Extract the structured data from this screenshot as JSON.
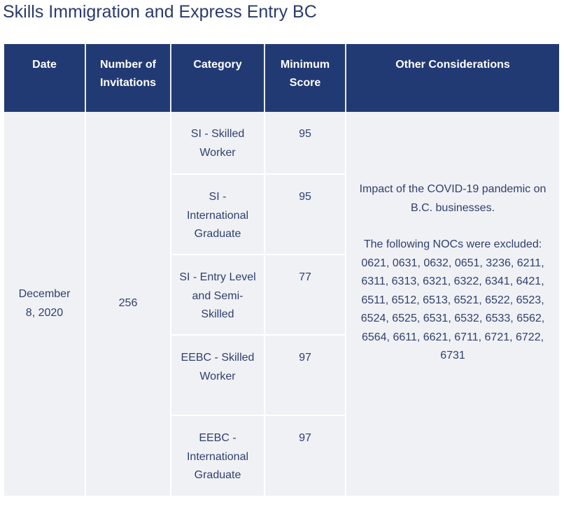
{
  "title": "Skills Immigration and Express Entry BC",
  "table": {
    "headers": {
      "date": "Date",
      "invitations": "Number of Invitations",
      "category": "Category",
      "min_score": "Minimum Score",
      "other": "Other Considerations"
    },
    "date": "December 8, 2020",
    "invitations": "256",
    "rows": [
      {
        "category": "SI - Skilled Worker",
        "score": "95"
      },
      {
        "category": "SI - International Graduate",
        "score": "95"
      },
      {
        "category": "SI - Entry Level and Semi-Skilled",
        "score": "77"
      },
      {
        "category": "EEBC - Skilled Worker",
        "score": "97"
      },
      {
        "category": "EEBC - International Graduate",
        "score": "97"
      }
    ],
    "other_impact": "Impact of the COVID-19 pandemic on B.C. businesses.",
    "other_nocs": "The following NOCs were excluded: 0621, 0631, 0632, 0651, 3236, 6211, 6311, 6313, 6321, 6322, 6341, 6421, 6511, 6512, 6513, 6521, 6522, 6523, 6524, 6525, 6531, 6532, 6533, 6562, 6564, 6611, 6621, 6711, 6721, 6722, 6731"
  }
}
